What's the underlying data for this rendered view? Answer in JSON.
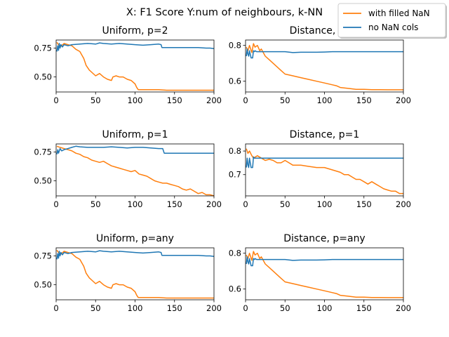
{
  "figure": {
    "title": "X: F1 Score Y:num of neighbours, k-NN"
  },
  "legend": {
    "placement": "top-right",
    "entries": [
      {
        "label": "with filled NaN",
        "color": "#ff7f0e"
      },
      {
        "label": "no NaN cols",
        "color": "#1f77b4"
      }
    ]
  },
  "chart_data": [
    {
      "type": "line",
      "title": "Uniform, p=2",
      "xlim": [
        0,
        200
      ],
      "ylim": [
        0.37,
        0.82
      ],
      "xticks": [
        0,
        50,
        100,
        150,
        200
      ],
      "yticks": [
        0.5,
        0.75
      ],
      "ytick_labels": [
        "0.50",
        "0.75"
      ],
      "series": [
        {
          "name": "with filled NaN",
          "color": "#ff7f0e",
          "x": [
            1,
            5,
            10,
            15,
            20,
            25,
            30,
            35,
            38,
            42,
            50,
            55,
            60,
            65,
            70,
            72,
            76,
            80,
            85,
            90,
            95,
            100,
            102,
            104,
            110,
            120,
            130,
            140,
            150,
            160,
            170,
            180,
            190,
            200
          ],
          "y": [
            0.8,
            0.76,
            0.79,
            0.78,
            0.77,
            0.74,
            0.72,
            0.66,
            0.6,
            0.56,
            0.51,
            0.53,
            0.5,
            0.48,
            0.47,
            0.5,
            0.51,
            0.5,
            0.5,
            0.48,
            0.47,
            0.44,
            0.41,
            0.39,
            0.39,
            0.39,
            0.39,
            0.385,
            0.385,
            0.385,
            0.385,
            0.385,
            0.385,
            0.385
          ]
        },
        {
          "name": "no NaN cols",
          "color": "#1f77b4",
          "x": [
            1,
            2,
            3,
            4,
            5,
            6,
            8,
            10,
            15,
            20,
            30,
            40,
            50,
            55,
            60,
            70,
            80,
            90,
            100,
            110,
            120,
            130,
            133,
            134,
            140,
            150,
            160,
            170,
            180,
            190,
            195,
            200
          ],
          "y": [
            0.72,
            0.77,
            0.73,
            0.79,
            0.75,
            0.78,
            0.76,
            0.78,
            0.77,
            0.78,
            0.785,
            0.79,
            0.785,
            0.795,
            0.79,
            0.785,
            0.79,
            0.785,
            0.78,
            0.775,
            0.78,
            0.785,
            0.78,
            0.755,
            0.755,
            0.755,
            0.755,
            0.755,
            0.755,
            0.75,
            0.75,
            0.745
          ]
        }
      ]
    },
    {
      "type": "line",
      "title": "Distance, p=2",
      "xlim": [
        0,
        200
      ],
      "ylim": [
        0.54,
        0.83
      ],
      "xticks": [
        0,
        50,
        100,
        150,
        200
      ],
      "yticks": [
        0.6,
        0.8
      ],
      "ytick_labels": [
        "0.6",
        "0.8"
      ],
      "series": [
        {
          "name": "with filled NaN",
          "color": "#ff7f0e",
          "x": [
            1,
            3,
            5,
            8,
            10,
            12,
            15,
            18,
            20,
            25,
            30,
            35,
            40,
            45,
            50,
            60,
            70,
            80,
            90,
            100,
            110,
            115,
            120,
            130,
            140,
            150,
            160,
            170,
            180,
            190,
            200
          ],
          "y": [
            0.79,
            0.77,
            0.8,
            0.76,
            0.81,
            0.79,
            0.8,
            0.77,
            0.78,
            0.74,
            0.72,
            0.7,
            0.68,
            0.66,
            0.64,
            0.63,
            0.62,
            0.61,
            0.6,
            0.59,
            0.58,
            0.575,
            0.565,
            0.56,
            0.555,
            0.555,
            0.553,
            0.553,
            0.552,
            0.552,
            0.552
          ]
        },
        {
          "name": "no NaN cols",
          "color": "#1f77b4",
          "x": [
            1,
            2,
            3,
            4,
            5,
            7,
            9,
            10,
            11,
            12,
            14,
            15,
            20,
            30,
            40,
            50,
            60,
            70,
            80,
            90,
            100,
            110,
            120,
            130,
            140,
            150,
            160,
            170,
            180,
            190,
            200
          ],
          "y": [
            0.74,
            0.78,
            0.75,
            0.74,
            0.77,
            0.73,
            0.73,
            0.77,
            0.765,
            0.77,
            0.765,
            0.765,
            0.765,
            0.765,
            0.765,
            0.765,
            0.76,
            0.762,
            0.762,
            0.762,
            0.763,
            0.765,
            0.765,
            0.765,
            0.765,
            0.765,
            0.765,
            0.765,
            0.765,
            0.765,
            0.765
          ]
        }
      ]
    },
    {
      "type": "line",
      "title": "Uniform, p=1",
      "xlim": [
        0,
        200
      ],
      "ylim": [
        0.37,
        0.82
      ],
      "xticks": [
        0,
        50,
        100,
        150,
        200
      ],
      "yticks": [
        0.5,
        0.75
      ],
      "ytick_labels": [
        "0.50",
        "0.75"
      ],
      "series": [
        {
          "name": "with filled NaN",
          "color": "#ff7f0e",
          "x": [
            1,
            5,
            10,
            15,
            20,
            25,
            30,
            35,
            40,
            45,
            50,
            55,
            60,
            65,
            70,
            75,
            80,
            85,
            90,
            95,
            100,
            105,
            110,
            115,
            120,
            125,
            130,
            135,
            140,
            145,
            150,
            155,
            160,
            165,
            170,
            175,
            180,
            185,
            190,
            195,
            200
          ],
          "y": [
            0.8,
            0.79,
            0.78,
            0.77,
            0.76,
            0.74,
            0.73,
            0.71,
            0.7,
            0.68,
            0.67,
            0.66,
            0.67,
            0.65,
            0.63,
            0.62,
            0.61,
            0.6,
            0.59,
            0.58,
            0.59,
            0.56,
            0.55,
            0.54,
            0.52,
            0.5,
            0.49,
            0.48,
            0.48,
            0.47,
            0.46,
            0.45,
            0.43,
            0.42,
            0.43,
            0.41,
            0.39,
            0.4,
            0.38,
            0.38,
            0.37
          ]
        },
        {
          "name": "no NaN cols",
          "color": "#1f77b4",
          "x": [
            1,
            2,
            3,
            5,
            7,
            10,
            15,
            20,
            25,
            30,
            40,
            50,
            60,
            70,
            80,
            90,
            100,
            110,
            120,
            130,
            135,
            137,
            140,
            150,
            160,
            170,
            180,
            190,
            200
          ],
          "y": [
            0.73,
            0.77,
            0.74,
            0.78,
            0.76,
            0.77,
            0.78,
            0.79,
            0.8,
            0.795,
            0.79,
            0.79,
            0.79,
            0.795,
            0.79,
            0.785,
            0.79,
            0.79,
            0.785,
            0.78,
            0.78,
            0.74,
            0.74,
            0.74,
            0.74,
            0.74,
            0.74,
            0.74,
            0.74
          ]
        }
      ]
    },
    {
      "type": "line",
      "title": "Distance, p=1",
      "xlim": [
        0,
        200
      ],
      "ylim": [
        0.61,
        0.83
      ],
      "xticks": [
        0,
        50,
        100,
        150,
        200
      ],
      "yticks": [
        0.7,
        0.8
      ],
      "ytick_labels": [
        "0.7",
        "0.8"
      ],
      "series": [
        {
          "name": "with filled NaN",
          "color": "#ff7f0e",
          "x": [
            1,
            3,
            5,
            8,
            10,
            15,
            20,
            25,
            30,
            35,
            40,
            45,
            50,
            55,
            60,
            70,
            80,
            90,
            100,
            110,
            120,
            125,
            130,
            135,
            140,
            145,
            150,
            155,
            160,
            165,
            170,
            175,
            180,
            185,
            190,
            195,
            200
          ],
          "y": [
            0.81,
            0.79,
            0.8,
            0.78,
            0.77,
            0.78,
            0.77,
            0.76,
            0.765,
            0.76,
            0.75,
            0.75,
            0.76,
            0.75,
            0.74,
            0.74,
            0.735,
            0.73,
            0.73,
            0.72,
            0.71,
            0.7,
            0.7,
            0.69,
            0.68,
            0.68,
            0.67,
            0.66,
            0.67,
            0.66,
            0.65,
            0.64,
            0.635,
            0.63,
            0.63,
            0.62,
            0.62
          ]
        },
        {
          "name": "no NaN cols",
          "color": "#1f77b4",
          "x": [
            1,
            2,
            3,
            4,
            5,
            7,
            9,
            10,
            11,
            12,
            15,
            20,
            30,
            50,
            100,
            150,
            200
          ],
          "y": [
            0.73,
            0.77,
            0.74,
            0.73,
            0.77,
            0.73,
            0.73,
            0.775,
            0.77,
            0.77,
            0.77,
            0.77,
            0.77,
            0.77,
            0.77,
            0.77,
            0.77
          ]
        }
      ]
    },
    {
      "type": "line",
      "title": "Uniform, p=any",
      "xlim": [
        0,
        200
      ],
      "ylim": [
        0.37,
        0.82
      ],
      "xticks": [
        0,
        50,
        100,
        150,
        200
      ],
      "yticks": [
        0.5,
        0.75
      ],
      "ytick_labels": [
        "0.50",
        "0.75"
      ],
      "series": [
        {
          "name": "with filled NaN",
          "color": "#ff7f0e",
          "x": [
            1,
            5,
            10,
            15,
            20,
            25,
            30,
            35,
            38,
            42,
            50,
            55,
            60,
            65,
            70,
            72,
            76,
            80,
            85,
            90,
            95,
            100,
            102,
            104,
            110,
            120,
            130,
            140,
            150,
            160,
            170,
            180,
            190,
            200
          ],
          "y": [
            0.8,
            0.76,
            0.79,
            0.78,
            0.77,
            0.74,
            0.72,
            0.66,
            0.6,
            0.56,
            0.51,
            0.53,
            0.5,
            0.48,
            0.47,
            0.5,
            0.51,
            0.5,
            0.5,
            0.48,
            0.47,
            0.44,
            0.41,
            0.39,
            0.39,
            0.39,
            0.39,
            0.385,
            0.385,
            0.385,
            0.385,
            0.385,
            0.385,
            0.385
          ]
        },
        {
          "name": "no NaN cols",
          "color": "#1f77b4",
          "x": [
            1,
            2,
            3,
            4,
            5,
            6,
            8,
            10,
            15,
            20,
            30,
            40,
            50,
            55,
            60,
            70,
            80,
            90,
            100,
            110,
            120,
            130,
            133,
            134,
            140,
            150,
            160,
            170,
            180,
            190,
            195,
            200
          ],
          "y": [
            0.72,
            0.77,
            0.73,
            0.79,
            0.75,
            0.78,
            0.76,
            0.78,
            0.77,
            0.78,
            0.785,
            0.79,
            0.785,
            0.795,
            0.79,
            0.785,
            0.79,
            0.785,
            0.78,
            0.775,
            0.78,
            0.785,
            0.78,
            0.755,
            0.755,
            0.755,
            0.755,
            0.755,
            0.755,
            0.75,
            0.75,
            0.745
          ]
        }
      ]
    },
    {
      "type": "line",
      "title": "Distance, p=any",
      "xlim": [
        0,
        200
      ],
      "ylim": [
        0.54,
        0.83
      ],
      "xticks": [
        0,
        50,
        100,
        150,
        200
      ],
      "yticks": [
        0.6,
        0.8
      ],
      "ytick_labels": [
        "0.6",
        "0.8"
      ],
      "series": [
        {
          "name": "with filled NaN",
          "color": "#ff7f0e",
          "x": [
            1,
            3,
            5,
            8,
            10,
            12,
            15,
            18,
            20,
            25,
            30,
            35,
            40,
            45,
            50,
            60,
            70,
            80,
            90,
            100,
            110,
            115,
            120,
            130,
            140,
            150,
            160,
            170,
            180,
            190,
            200
          ],
          "y": [
            0.79,
            0.77,
            0.8,
            0.76,
            0.81,
            0.79,
            0.8,
            0.77,
            0.78,
            0.74,
            0.72,
            0.7,
            0.68,
            0.66,
            0.64,
            0.63,
            0.62,
            0.61,
            0.6,
            0.59,
            0.58,
            0.575,
            0.565,
            0.56,
            0.555,
            0.555,
            0.553,
            0.553,
            0.552,
            0.552,
            0.552
          ]
        },
        {
          "name": "no NaN cols",
          "color": "#1f77b4",
          "x": [
            1,
            2,
            3,
            4,
            5,
            7,
            9,
            10,
            11,
            12,
            14,
            15,
            20,
            30,
            40,
            50,
            60,
            70,
            80,
            90,
            100,
            110,
            120,
            130,
            140,
            150,
            160,
            170,
            180,
            190,
            200
          ],
          "y": [
            0.74,
            0.78,
            0.75,
            0.74,
            0.77,
            0.73,
            0.73,
            0.77,
            0.765,
            0.77,
            0.765,
            0.765,
            0.765,
            0.765,
            0.765,
            0.765,
            0.76,
            0.762,
            0.762,
            0.762,
            0.763,
            0.765,
            0.765,
            0.765,
            0.765,
            0.765,
            0.765,
            0.765,
            0.765,
            0.765,
            0.765
          ]
        }
      ]
    }
  ]
}
